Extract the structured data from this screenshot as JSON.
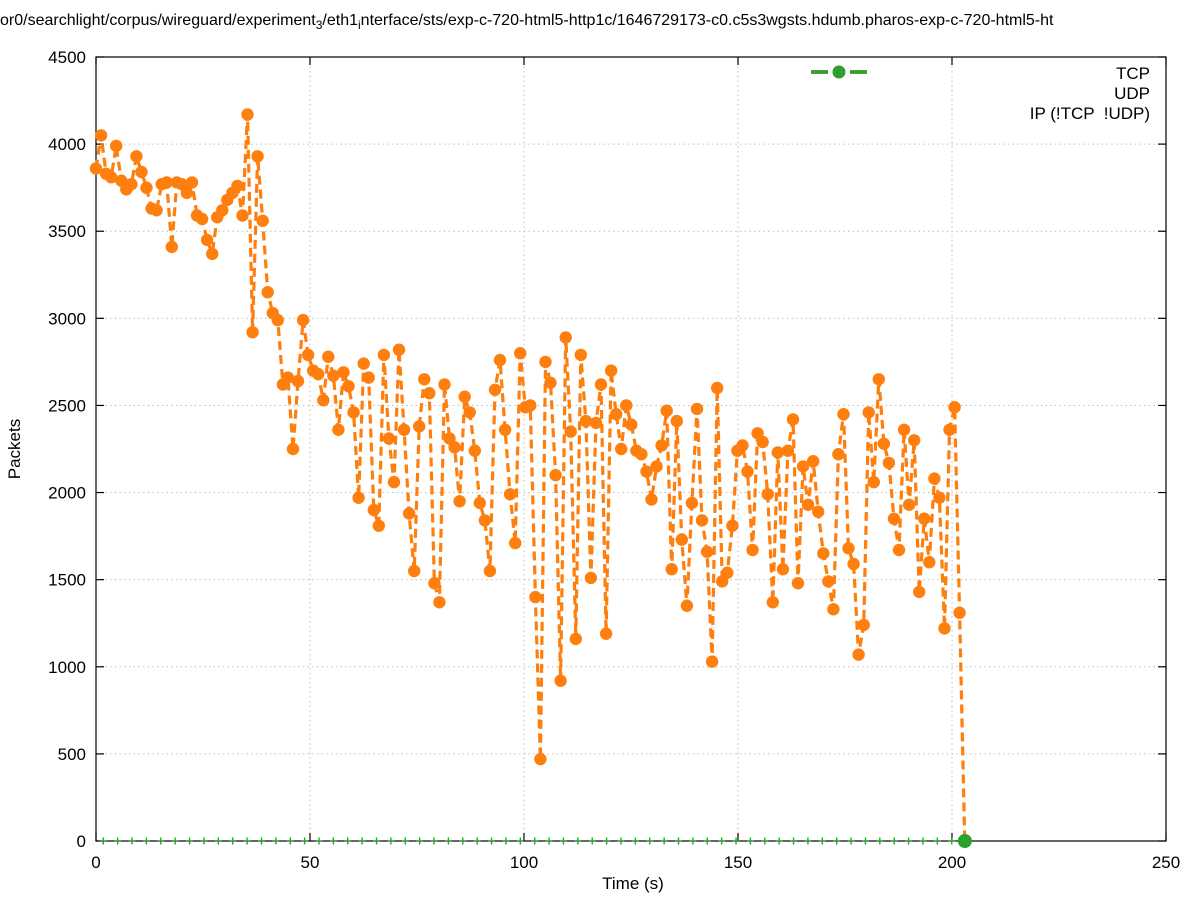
{
  "title": {
    "part1": "or0/searchlight/corpus/wireguard/experiment",
    "sub1": "3",
    "part2": "/eth1",
    "sub2": "i",
    "part3": "nterface/sts/exp-c-720-html5-http1c/1646729173-c0.c5s3wgsts.hdumb.pharos-exp-c-720-html5-ht"
  },
  "axes": {
    "x": {
      "label": "Time (s)",
      "min": 0,
      "max": 250,
      "ticks": [
        0,
        50,
        100,
        150,
        200,
        250
      ]
    },
    "y": {
      "label": "Packets",
      "min": 0,
      "max": 4500,
      "ticks": [
        0,
        500,
        1000,
        1500,
        2000,
        2500,
        3000,
        3500,
        4000,
        4500
      ]
    }
  },
  "legend": [
    {
      "label": "TCP",
      "color": "#1f77b4"
    },
    {
      "label": "UDP",
      "color": "#ff7f0e"
    },
    {
      "label": "IP (!TCP  !UDP)",
      "color": "#2ca02c"
    }
  ],
  "chart_data": {
    "type": "line",
    "title": "packet counts over time (gnuplot style, dashed lines with point markers)",
    "xlabel": "Time (s)",
    "ylabel": "Packets",
    "xlim": [
      0,
      250
    ],
    "ylim": [
      0,
      4500
    ],
    "grid": true,
    "legend_position": "top-right inside",
    "series": [
      {
        "name": "TCP",
        "color": "#1f77b4",
        "visible_in_plot": false,
        "note": "appears in legend only; no TCP points visible in the plot area"
      },
      {
        "name": "UDP",
        "color": "#ff7f0e",
        "x_start": 0,
        "x_step": 1.18,
        "values": [
          3860,
          4050,
          3830,
          3810,
          3990,
          3790,
          3740,
          3770,
          3930,
          3840,
          3750,
          3630,
          3620,
          3770,
          3780,
          3410,
          3780,
          3770,
          3720,
          3780,
          3590,
          3570,
          3450,
          3370,
          3580,
          3620,
          3680,
          3720,
          3760,
          3590,
          4170,
          2920,
          3930,
          3560,
          3150,
          3030,
          2990,
          2620,
          2660,
          2250,
          2640,
          2990,
          2790,
          2700,
          2680,
          2530,
          2780,
          2670,
          2360,
          2690,
          2610,
          2460,
          1970,
          2740,
          2660,
          1900,
          1810,
          2790,
          2310,
          2060,
          2820,
          2360,
          1880,
          1550,
          2380,
          2650,
          2570,
          1480,
          1370,
          2620,
          2310,
          2260,
          1950,
          2550,
          2460,
          2240,
          1940,
          1840,
          1550,
          2590,
          2760,
          2360,
          1990,
          1710,
          2800,
          2490,
          2500,
          1400,
          470,
          2750,
          2630,
          2100,
          920,
          2890,
          2350,
          1160,
          2790,
          2410,
          1510,
          2400,
          2620,
          1190,
          2700,
          2450,
          2250,
          2500,
          2390,
          2240,
          2220,
          2120,
          1960,
          2150,
          2270,
          2470,
          1560,
          2410,
          1730,
          1350,
          1940,
          2480,
          1840,
          1660,
          1030,
          2600,
          1490,
          1540,
          1810,
          2240,
          2270,
          2120,
          1670,
          2340,
          2290,
          1990,
          1370,
          2230,
          1560,
          2240,
          2420,
          1480,
          2150,
          1930,
          2180,
          1890,
          1650,
          1490,
          1330,
          2220,
          2450,
          1680,
          1590,
          1070,
          1240,
          2460,
          2060,
          2650,
          2280,
          2170,
          1850,
          1670,
          2360,
          1930,
          2300,
          1430,
          1850,
          1600,
          2080,
          1970,
          1220,
          2360,
          2490,
          1310,
          0
        ]
      },
      {
        "name": "IP (!TCP  !UDP)",
        "color": "#2ca02c",
        "constant_value": 0,
        "x_start": 0,
        "x_end": 203,
        "note": "flat at 0 along the x-axis (small tick markers), with a filled circle end marker at x≈203, y=0"
      }
    ]
  }
}
